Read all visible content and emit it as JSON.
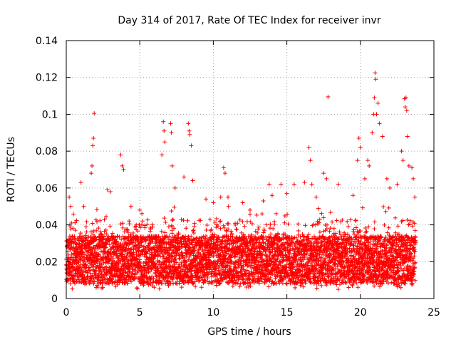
{
  "chart_data": {
    "type": "scatter",
    "title": "Day 314 of 2017, Rate Of TEC Index for receiver invr",
    "xlabel": "GPS time / hours",
    "ylabel": "ROTI / TECUs",
    "xlim": [
      0,
      25
    ],
    "ylim": [
      0,
      0.14
    ],
    "x_ticks": [
      0,
      5,
      10,
      15,
      20,
      25
    ],
    "x_tick_labels": [
      "0",
      "5",
      "10",
      "15",
      "20",
      "25"
    ],
    "y_ticks": [
      0,
      0.02,
      0.04,
      0.06,
      0.08,
      0.1,
      0.12,
      0.14
    ],
    "y_tick_labels": [
      "0",
      "0.02",
      "0.04",
      "0.06",
      "0.08",
      "0.1",
      "0.12",
      "0.14"
    ],
    "grid": true,
    "marker": "+",
    "marker_color": "#ff0000",
    "series": [
      {
        "name": "ROTI",
        "x_range": [
          0,
          23.75
        ],
        "baseline_range": [
          0.005,
          0.04
        ],
        "notable_points": [
          {
            "x": 0.05,
            "y": 0.028
          },
          {
            "x": 0.2,
            "y": 0.055
          },
          {
            "x": 0.3,
            "y": 0.05
          },
          {
            "x": 0.35,
            "y": 0.041
          },
          {
            "x": 1.0,
            "y": 0.063
          },
          {
            "x": 1.7,
            "y": 0.068
          },
          {
            "x": 1.75,
            "y": 0.072
          },
          {
            "x": 1.8,
            "y": 0.083
          },
          {
            "x": 1.85,
            "y": 0.087
          },
          {
            "x": 1.9,
            "y": 0.1005
          },
          {
            "x": 2.8,
            "y": 0.059
          },
          {
            "x": 3.0,
            "y": 0.058
          },
          {
            "x": 3.7,
            "y": 0.078
          },
          {
            "x": 3.8,
            "y": 0.072
          },
          {
            "x": 3.9,
            "y": 0.07
          },
          {
            "x": 4.4,
            "y": 0.05
          },
          {
            "x": 5.0,
            "y": 0.048
          },
          {
            "x": 6.5,
            "y": 0.078
          },
          {
            "x": 6.6,
            "y": 0.096
          },
          {
            "x": 6.65,
            "y": 0.091
          },
          {
            "x": 6.7,
            "y": 0.085
          },
          {
            "x": 7.1,
            "y": 0.095
          },
          {
            "x": 7.15,
            "y": 0.09
          },
          {
            "x": 7.2,
            "y": 0.072
          },
          {
            "x": 7.4,
            "y": 0.06
          },
          {
            "x": 8.0,
            "y": 0.066
          },
          {
            "x": 8.3,
            "y": 0.095
          },
          {
            "x": 8.35,
            "y": 0.091
          },
          {
            "x": 8.4,
            "y": 0.089
          },
          {
            "x": 8.5,
            "y": 0.083
          },
          {
            "x": 8.6,
            "y": 0.064
          },
          {
            "x": 9.5,
            "y": 0.054
          },
          {
            "x": 10.0,
            "y": 0.052
          },
          {
            "x": 10.5,
            "y": 0.055
          },
          {
            "x": 10.7,
            "y": 0.071
          },
          {
            "x": 10.8,
            "y": 0.068
          },
          {
            "x": 11.0,
            "y": 0.055
          },
          {
            "x": 12.0,
            "y": 0.052
          },
          {
            "x": 12.5,
            "y": 0.048
          },
          {
            "x": 13.4,
            "y": 0.053
          },
          {
            "x": 13.8,
            "y": 0.062
          },
          {
            "x": 14.0,
            "y": 0.056
          },
          {
            "x": 14.6,
            "y": 0.062
          },
          {
            "x": 15.0,
            "y": 0.057
          },
          {
            "x": 15.5,
            "y": 0.062
          },
          {
            "x": 16.2,
            "y": 0.063
          },
          {
            "x": 16.5,
            "y": 0.082
          },
          {
            "x": 16.6,
            "y": 0.075
          },
          {
            "x": 16.7,
            "y": 0.062
          },
          {
            "x": 17.0,
            "y": 0.055
          },
          {
            "x": 17.5,
            "y": 0.068
          },
          {
            "x": 17.7,
            "y": 0.065
          },
          {
            "x": 17.8,
            "y": 0.1095
          },
          {
            "x": 18.5,
            "y": 0.062
          },
          {
            "x": 19.5,
            "y": 0.056
          },
          {
            "x": 19.8,
            "y": 0.075
          },
          {
            "x": 19.9,
            "y": 0.087
          },
          {
            "x": 20.0,
            "y": 0.082
          },
          {
            "x": 20.3,
            "y": 0.065
          },
          {
            "x": 20.5,
            "y": 0.075
          },
          {
            "x": 20.6,
            "y": 0.072
          },
          {
            "x": 20.8,
            "y": 0.09
          },
          {
            "x": 20.9,
            "y": 0.1
          },
          {
            "x": 20.95,
            "y": 0.109
          },
          {
            "x": 21.0,
            "y": 0.1225
          },
          {
            "x": 21.05,
            "y": 0.119
          },
          {
            "x": 21.1,
            "y": 0.1
          },
          {
            "x": 21.2,
            "y": 0.106
          },
          {
            "x": 21.3,
            "y": 0.095
          },
          {
            "x": 21.5,
            "y": 0.088
          },
          {
            "x": 21.8,
            "y": 0.065
          },
          {
            "x": 22.0,
            "y": 0.06
          },
          {
            "x": 22.5,
            "y": 0.062
          },
          {
            "x": 22.8,
            "y": 0.08
          },
          {
            "x": 22.9,
            "y": 0.075
          },
          {
            "x": 23.0,
            "y": 0.1085
          },
          {
            "x": 23.05,
            "y": 0.104
          },
          {
            "x": 23.1,
            "y": 0.109
          },
          {
            "x": 23.15,
            "y": 0.102
          },
          {
            "x": 23.2,
            "y": 0.088
          },
          {
            "x": 23.3,
            "y": 0.072
          },
          {
            "x": 23.5,
            "y": 0.071
          },
          {
            "x": 23.6,
            "y": 0.065
          },
          {
            "x": 23.7,
            "y": 0.055
          }
        ]
      }
    ]
  }
}
